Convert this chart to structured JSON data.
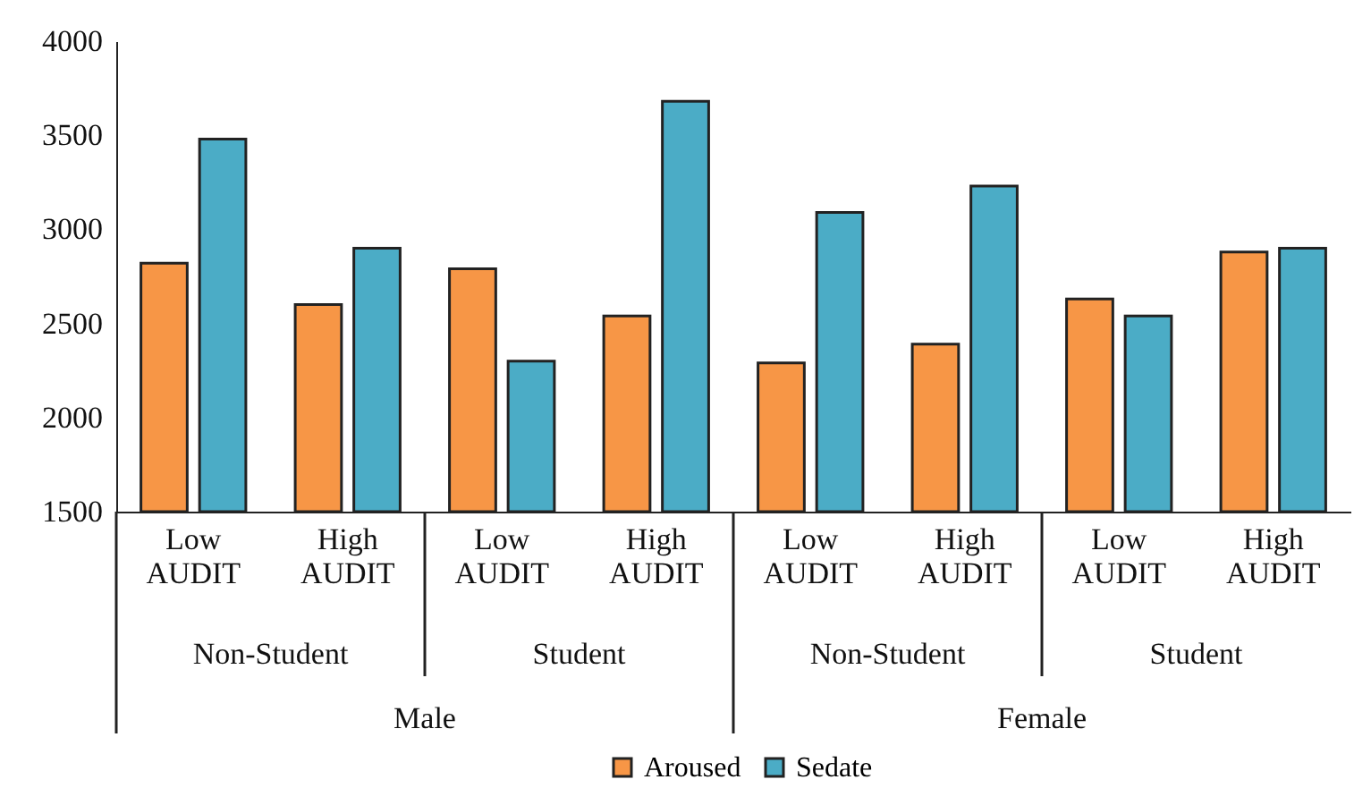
{
  "chart_data": {
    "type": "bar",
    "categories": [
      "Low AUDIT",
      "High AUDIT",
      "Low AUDIT",
      "High AUDIT",
      "Low AUDIT",
      "High AUDIT",
      "Low AUDIT",
      "High AUDIT"
    ],
    "series": [
      {
        "name": "Aroused",
        "color": "#f79646",
        "values": [
          2820,
          2600,
          2790,
          2540,
          2290,
          2390,
          2630,
          2880
        ]
      },
      {
        "name": "Sedate",
        "color": "#4bacc6",
        "values": [
          3480,
          2900,
          2300,
          3680,
          3090,
          3230,
          2540,
          2900
        ]
      }
    ],
    "annotations": [
      "Non-Student",
      "Student",
      "Non-Student",
      "Student",
      "Male",
      "Female"
    ],
    "ylim": [
      1500,
      4000
    ],
    "yticks": [
      1500,
      2000,
      2500,
      3000,
      3500,
      4000
    ],
    "grid": false,
    "legend": "bottom"
  }
}
